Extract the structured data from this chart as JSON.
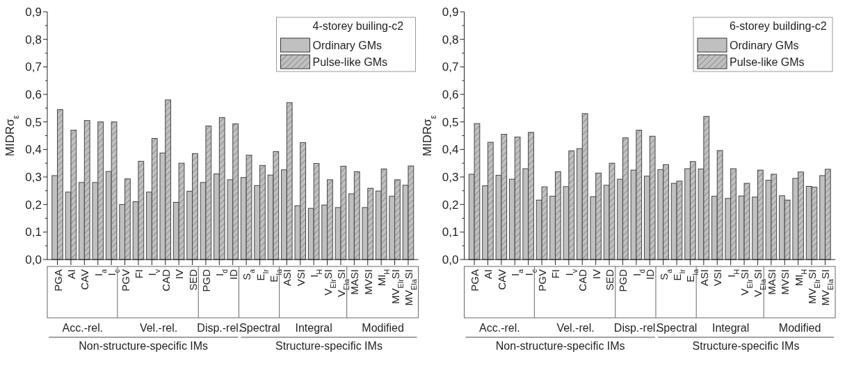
{
  "chart_data": [
    {
      "type": "bar",
      "ylabel": "MIDRσ$_{ε}$",
      "legend_title": "4-storey builing-c2",
      "legend": "top right",
      "categories": [
        "PGA",
        "AI",
        "CAV",
        "I$_{a}$",
        "I$_{c}$",
        "PGV",
        "FI",
        "I$_{v}$",
        "CAD",
        "IV",
        "SED",
        "PGD",
        "I$_{d}$",
        "ID",
        "S$_{a}$",
        "E$_{Ir}$",
        "E$_{Ia}$",
        "ASI",
        "VSI",
        "I$_{H}$",
        "V$_{EIr}$SI",
        "V$_{EIa}$SI",
        "MASI",
        "MVSI",
        "MI$_{H}$",
        "MV$_{EIr}$SI",
        "MV$_{EIa}$SI"
      ],
      "series": [
        {
          "name": "Ordinary GMs",
          "color": "#c0c0c0",
          "values": [
            0.305,
            0.245,
            0.28,
            0.28,
            0.32,
            0.2,
            0.21,
            0.245,
            0.387,
            0.208,
            0.248,
            0.28,
            0.311,
            0.29,
            0.298,
            0.269,
            0.307,
            0.326,
            0.195,
            0.186,
            0.198,
            0.189,
            0.239,
            0.189,
            0.249,
            0.23,
            0.27
          ]
        },
        {
          "name": "Pulse-like GMs",
          "color": "#c0c0c0",
          "values": [
            0.545,
            0.47,
            0.505,
            0.5,
            0.5,
            0.293,
            0.357,
            0.44,
            0.58,
            0.35,
            0.385,
            0.485,
            0.516,
            0.493,
            0.379,
            0.342,
            0.392,
            0.57,
            0.425,
            0.349,
            0.29,
            0.339,
            0.319,
            0.259,
            0.329,
            0.29,
            0.34
          ]
        }
      ],
      "ylim": [
        0,
        0.9
      ],
      "yticks": [
        {
          "value": 0,
          "label": "0,0"
        },
        {
          "value": 0.1,
          "label": "0,1"
        },
        {
          "value": 0.2,
          "label": "0,2"
        },
        {
          "value": 0.3,
          "label": "0,3"
        },
        {
          "value": 0.4,
          "label": "0,4"
        },
        {
          "value": 0.5,
          "label": "0,5"
        },
        {
          "value": 0.6,
          "label": "0,6"
        },
        {
          "value": 0.7,
          "label": "0,7"
        },
        {
          "value": 0.8,
          "label": "0,8"
        },
        {
          "value": 0.9,
          "label": "0,9"
        }
      ],
      "annotations": [
        "Acc.-rel.",
        "Vel.-rel.",
        "Disp.-rel.",
        "Spectral",
        "Integral",
        "Modified",
        "Non-structure-specific IMs",
        "Structure-specific IMs"
      ]
    },
    {
      "type": "bar",
      "ylabel": "MIDRσ$_{ε}$",
      "legend_title": "6-storey building-c2",
      "legend": "top right",
      "categories": [
        "PGA",
        "AI",
        "CAV",
        "I$_{a}$",
        "I$_{c}$",
        "PGV",
        "FI",
        "I$_{v}$",
        "CAD",
        "IV",
        "SED",
        "PGD",
        "I$_{d}$",
        "ID",
        "S$_{a}$",
        "E$_{Ir}$",
        "E$_{Ia}$",
        "ASI",
        "VSI",
        "I$_{H}$",
        "V$_{EIr}$SI",
        "V$_{EIa}$SI",
        "MASI",
        "MVSI",
        "MI$_{H}$",
        "MV$_{EIr}$SI",
        "MV$_{EIa}$SI"
      ],
      "series": [
        {
          "name": "Ordinary GMs",
          "color": "#c0c0c0",
          "values": [
            0.31,
            0.268,
            0.306,
            0.292,
            0.33,
            0.216,
            0.23,
            0.265,
            0.403,
            0.228,
            0.27,
            0.292,
            0.325,
            0.303,
            0.327,
            0.277,
            0.33,
            0.329,
            0.23,
            0.222,
            0.231,
            0.227,
            0.288,
            0.232,
            0.295,
            0.266,
            0.305
          ]
        },
        {
          "name": "Pulse-like GMs",
          "color": "#c0c0c0",
          "values": [
            0.494,
            0.426,
            0.455,
            0.445,
            0.462,
            0.264,
            0.319,
            0.395,
            0.53,
            0.314,
            0.35,
            0.442,
            0.47,
            0.448,
            0.345,
            0.285,
            0.356,
            0.52,
            0.396,
            0.33,
            0.277,
            0.325,
            0.31,
            0.216,
            0.318,
            0.263,
            0.328
          ]
        }
      ],
      "ylim": [
        0,
        0.9
      ],
      "yticks": [
        {
          "value": 0,
          "label": "0,0"
        },
        {
          "value": 0.1,
          "label": "0,1"
        },
        {
          "value": 0.2,
          "label": "0,2"
        },
        {
          "value": 0.3,
          "label": "0,3"
        },
        {
          "value": 0.4,
          "label": "0,4"
        },
        {
          "value": 0.5,
          "label": "0,5"
        },
        {
          "value": 0.6,
          "label": "0,6"
        },
        {
          "value": 0.7,
          "label": "0,7"
        },
        {
          "value": 0.8,
          "label": "0,8"
        },
        {
          "value": 0.9,
          "label": "0,9"
        }
      ],
      "annotations": [
        "Acc.-rel.",
        "Vel.-rel.",
        "Disp.-rel.",
        "Spectral",
        "Integral",
        "Modified",
        "Non-structure-specific IMs",
        "Structure-specific IMs"
      ]
    }
  ]
}
